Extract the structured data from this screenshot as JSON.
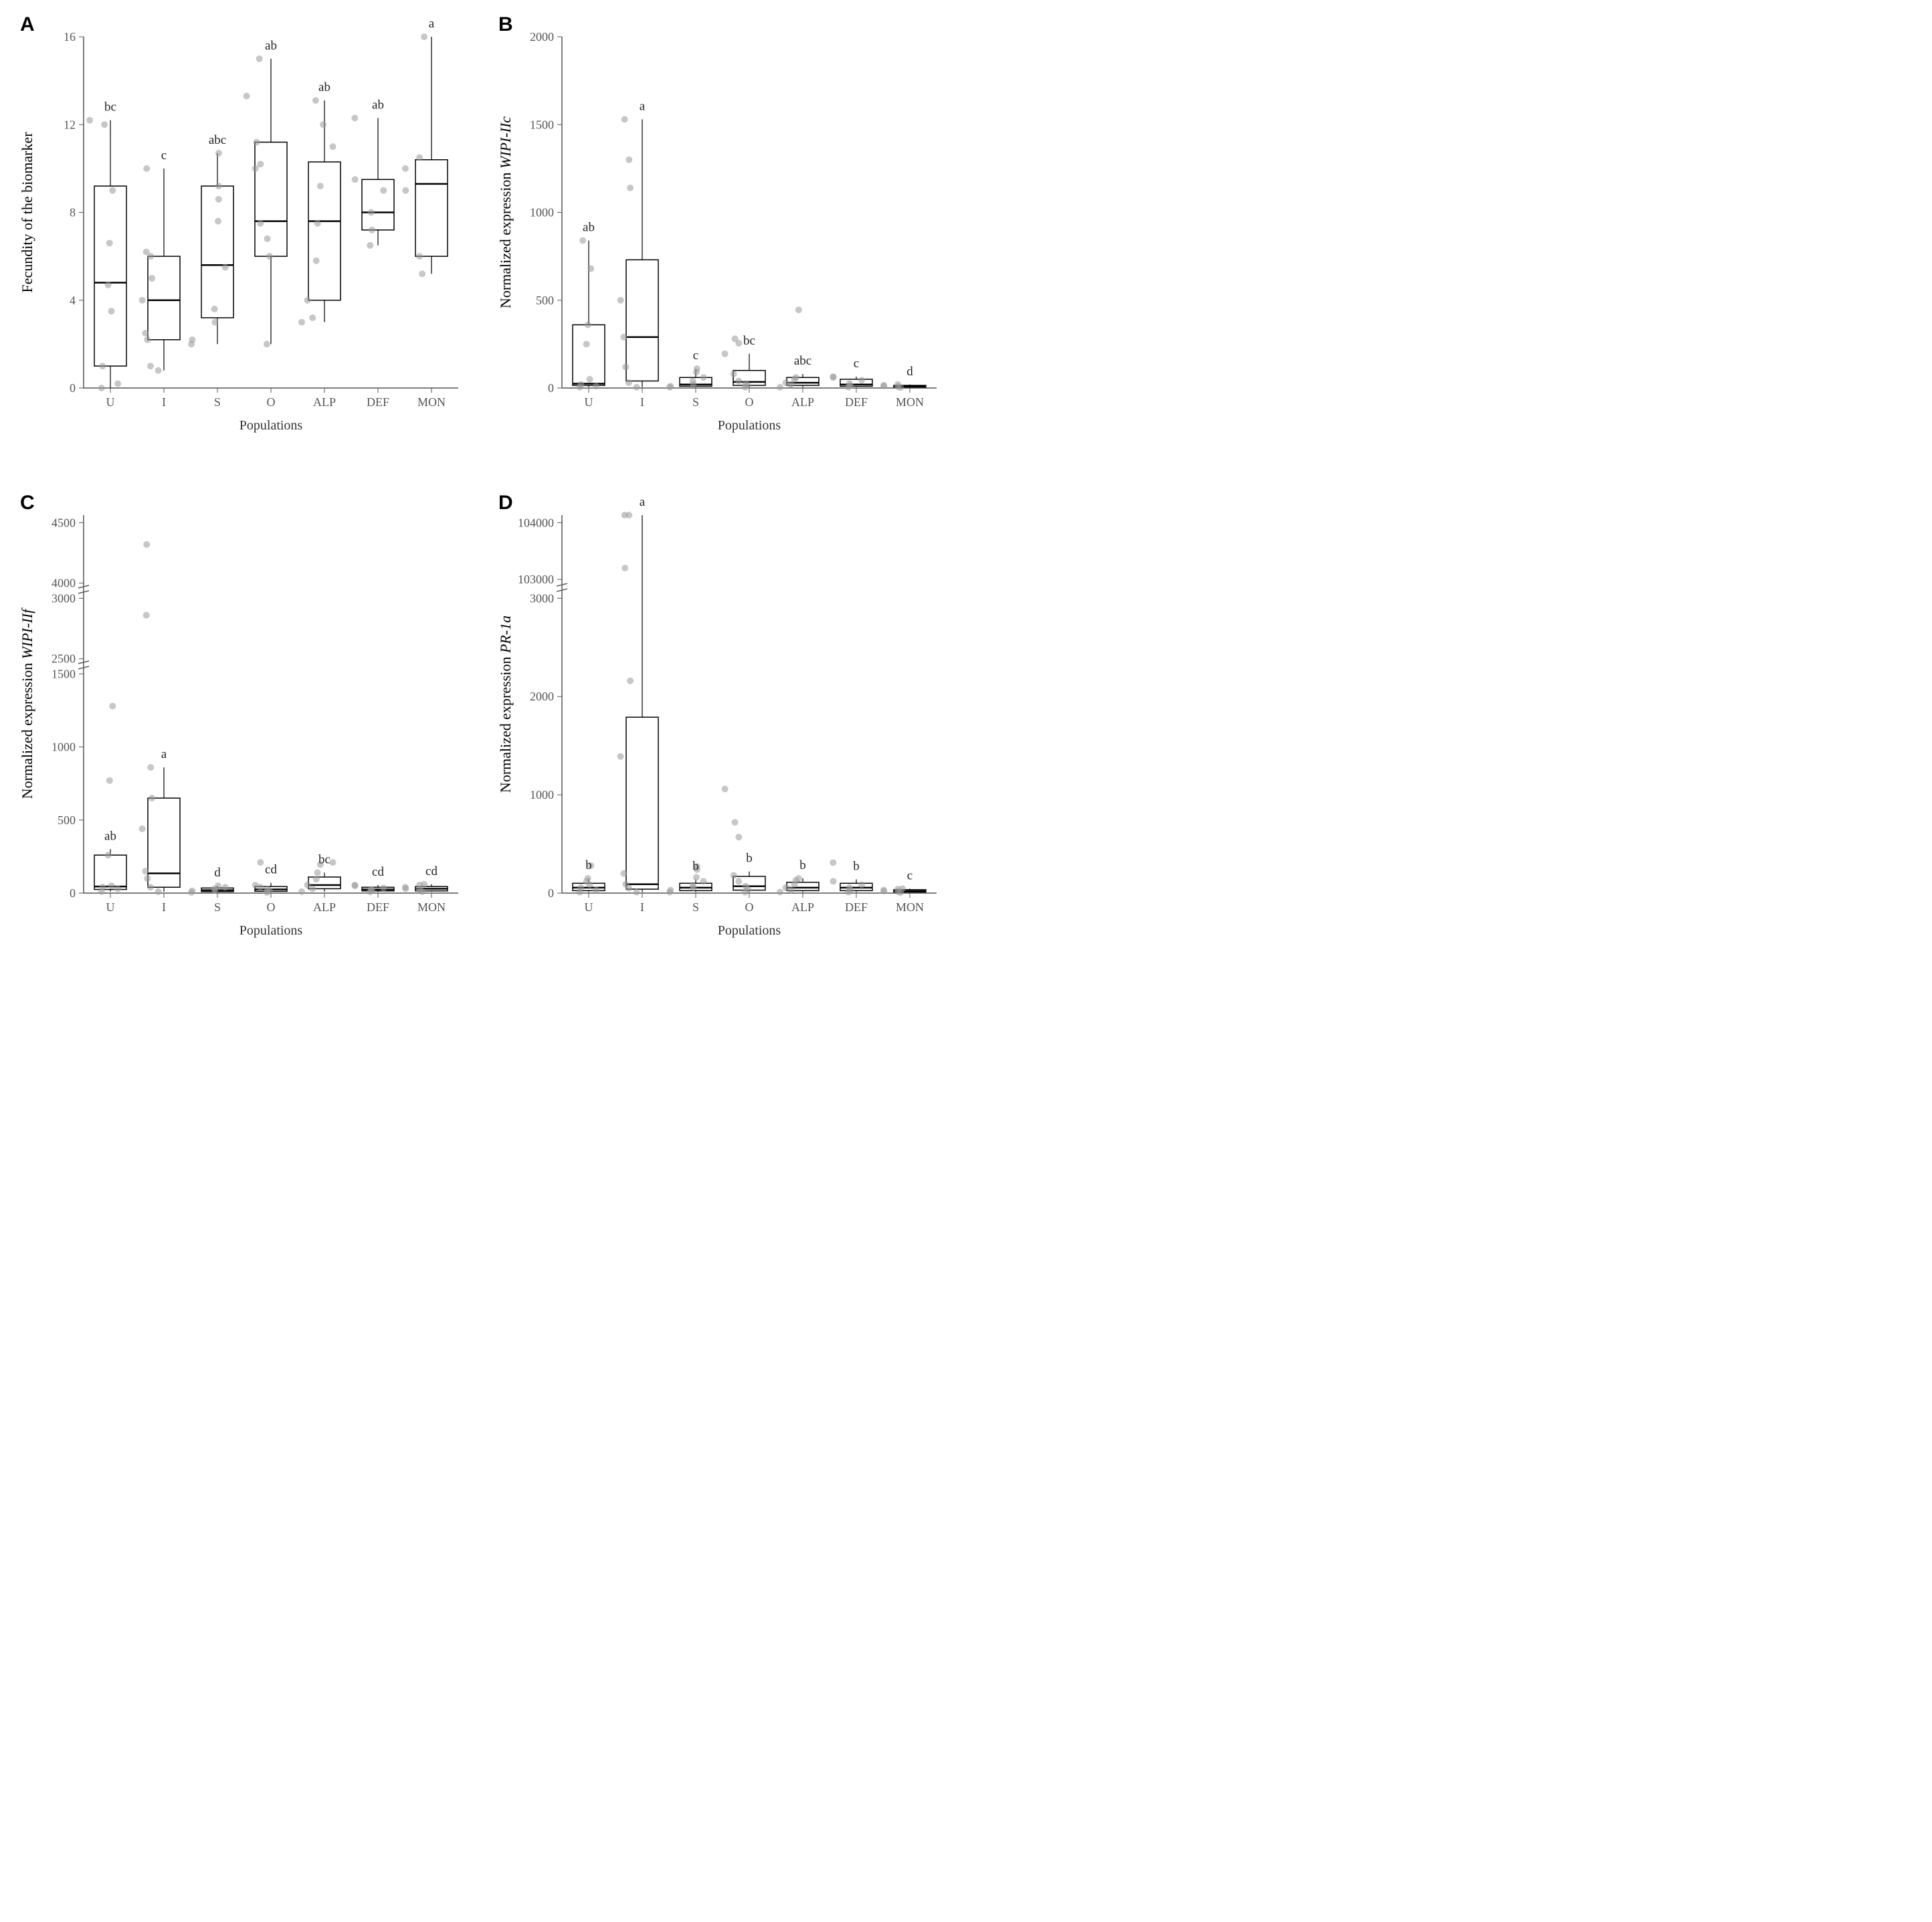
{
  "colors": {
    "background": "#ffffff",
    "axis": "#555555",
    "text": "#333333",
    "point": "#999999",
    "point_opacity": 0.55,
    "box_stroke": "#000000"
  },
  "fonts": {
    "panel_label_size": 30,
    "tick_label_size": 18,
    "axis_title_size": 22,
    "sig_label_size": 19
  },
  "x_categories": [
    "U",
    "I",
    "S",
    "O",
    "ALP",
    "DEF",
    "MON"
  ],
  "x_axis_label": "Populations",
  "panels": {
    "A": {
      "letter": "A",
      "ylabel": "Fecundity of the biomarker",
      "ylabel_italic": false,
      "yscale": {
        "min": 0,
        "max": 16,
        "ticks": [
          0,
          4,
          8,
          12,
          16
        ],
        "breaks": []
      },
      "sig_labels": [
        "bc",
        "c",
        "abc",
        "ab",
        "ab",
        "ab",
        "a"
      ],
      "boxes": [
        {
          "q1": 1.0,
          "med": 4.8,
          "q3": 9.2,
          "wl": 0,
          "wh": 12.2,
          "pts": [
            0,
            0.2,
            1.0,
            3.5,
            4.7,
            6.6,
            9.0,
            12.0,
            12.2
          ]
        },
        {
          "q1": 2.2,
          "med": 4.0,
          "q3": 6.0,
          "wl": 0.8,
          "wh": 10.0,
          "pts": [
            0.8,
            1.0,
            2.2,
            2.5,
            4.0,
            5.0,
            6.0,
            6.2,
            10.0
          ]
        },
        {
          "q1": 3.2,
          "med": 5.6,
          "q3": 9.2,
          "wl": 2.0,
          "wh": 10.7,
          "pts": [
            2.0,
            2.2,
            3.0,
            3.6,
            5.5,
            7.6,
            8.6,
            9.2,
            10.7
          ]
        },
        {
          "q1": 6.0,
          "med": 7.6,
          "q3": 11.2,
          "wl": 2.0,
          "wh": 15.0,
          "pts": [
            2.0,
            6.0,
            6.8,
            7.5,
            10.0,
            10.2,
            11.2,
            13.3,
            15.0
          ]
        },
        {
          "q1": 4.0,
          "med": 7.6,
          "q3": 10.3,
          "wl": 3.0,
          "wh": 13.1,
          "pts": [
            3.0,
            3.2,
            4.0,
            5.8,
            7.5,
            9.2,
            11.0,
            12.0,
            13.1
          ]
        },
        {
          "q1": 7.2,
          "med": 8.0,
          "q3": 9.5,
          "wl": 6.5,
          "wh": 12.3,
          "pts": [
            6.5,
            7.2,
            8.0,
            9.0,
            9.5,
            12.3
          ]
        },
        {
          "q1": 6.0,
          "med": 9.3,
          "q3": 10.4,
          "wl": 5.2,
          "wh": 16.0,
          "pts": [
            5.2,
            6.0,
            9.0,
            10.0,
            10.5,
            16.0
          ]
        }
      ]
    },
    "B": {
      "letter": "B",
      "ylabel_prefix": "Normalized expression  ",
      "ylabel_gene": "WIPI-IIc",
      "ylabel_italic": true,
      "yscale": {
        "min": 0,
        "max": 2000,
        "ticks": [
          0,
          500,
          1000,
          1500,
          2000
        ],
        "breaks": []
      },
      "sig_labels": [
        "ab",
        "a",
        "c",
        "bc",
        "abc",
        "c",
        "d"
      ],
      "boxes": [
        {
          "q1": 15,
          "med": 25,
          "q3": 360,
          "wl": 5,
          "wh": 840,
          "pts": [
            5,
            10,
            20,
            50,
            250,
            360,
            680,
            840
          ]
        },
        {
          "q1": 40,
          "med": 290,
          "q3": 730,
          "wl": 5,
          "wh": 1530,
          "pts": [
            5,
            30,
            120,
            290,
            500,
            1140,
            1300,
            1530
          ]
        },
        {
          "q1": 10,
          "med": 20,
          "q3": 60,
          "wl": 5,
          "wh": 110,
          "pts": [
            5,
            10,
            20,
            40,
            60,
            90,
            110
          ]
        },
        {
          "q1": 15,
          "med": 35,
          "q3": 100,
          "wl": 5,
          "wh": 195,
          "pts": [
            5,
            15,
            25,
            40,
            80,
            255,
            280,
            195
          ]
        },
        {
          "q1": 15,
          "med": 30,
          "q3": 60,
          "wl": 5,
          "wh": 80,
          "pts": [
            5,
            20,
            30,
            50,
            60,
            445
          ]
        },
        {
          "q1": 10,
          "med": 20,
          "q3": 50,
          "wl": 5,
          "wh": 65,
          "pts": [
            5,
            15,
            25,
            45,
            60,
            65
          ]
        },
        {
          "q1": 5,
          "med": 10,
          "q3": 15,
          "wl": 3,
          "wh": 20,
          "pts": [
            3,
            8,
            12,
            15,
            20
          ]
        }
      ]
    },
    "C": {
      "letter": "C",
      "ylabel_prefix": "Normalized expression  ",
      "ylabel_gene": "WIPI-IIf",
      "ylabel_italic": true,
      "yscale": {
        "min": 0,
        "max_low": 1500,
        "ticks_low": [
          0,
          500,
          1000,
          1500
        ],
        "min_high": 2500,
        "max_high": 4500,
        "ticks_high": [
          2500,
          3000,
          4000,
          4500
        ],
        "breaks": [
          [
            1500,
            2500
          ],
          [
            3000,
            4000
          ]
        ]
      },
      "sig_labels": [
        "ab",
        "a",
        "d",
        "cd",
        "bc",
        "cd",
        "cd"
      ],
      "boxes": [
        {
          "q1": 25,
          "med": 45,
          "q3": 260,
          "wl": 10,
          "wh": 300,
          "pts": [
            10,
            30,
            40,
            50,
            260,
            770,
            1280
          ]
        },
        {
          "q1": 40,
          "med": 135,
          "q3": 650,
          "wl": 10,
          "wh": 860,
          "pts": [
            10,
            40,
            100,
            150,
            440,
            650,
            860,
            2860,
            4320
          ]
        },
        {
          "q1": 10,
          "med": 20,
          "q3": 35,
          "wl": 5,
          "wh": 50,
          "pts": [
            5,
            15,
            20,
            30,
            40,
            50
          ]
        },
        {
          "q1": 12,
          "med": 25,
          "q3": 45,
          "wl": 5,
          "wh": 70,
          "pts": [
            5,
            15,
            25,
            40,
            55,
            210
          ]
        },
        {
          "q1": 30,
          "med": 55,
          "q3": 110,
          "wl": 10,
          "wh": 140,
          "pts": [
            10,
            30,
            55,
            95,
            140,
            195,
            210
          ]
        },
        {
          "q1": 15,
          "med": 25,
          "q3": 40,
          "wl": 8,
          "wh": 55,
          "pts": [
            8,
            20,
            25,
            35,
            50,
            55
          ]
        },
        {
          "q1": 15,
          "med": 30,
          "q3": 45,
          "wl": 10,
          "wh": 60,
          "pts": [
            10,
            25,
            30,
            40,
            55,
            60
          ]
        }
      ]
    },
    "D": {
      "letter": "D",
      "ylabel_prefix": "Normalized expression  ",
      "ylabel_gene": "PR-1a",
      "ylabel_italic": true,
      "yscale": {
        "min": 0,
        "max_low": 3000,
        "ticks_low": [
          0,
          1000,
          2000,
          3000
        ],
        "min_high": 103000,
        "max_high": 104000,
        "ticks_high": [
          103000,
          104000
        ],
        "breaks": [
          [
            3000,
            103000
          ]
        ]
      },
      "sig_labels": [
        "b",
        "a",
        "b",
        "b",
        "b",
        "b",
        "c"
      ],
      "boxes": [
        {
          "q1": 25,
          "med": 55,
          "q3": 100,
          "wl": 10,
          "wh": 150,
          "pts": [
            10,
            30,
            55,
            85,
            120,
            150,
            280
          ]
        },
        {
          "q1": 40,
          "med": 90,
          "q3": 1790,
          "wl": 10,
          "wh": 3100,
          "pts": [
            10,
            50,
            90,
            200,
            1390,
            2160,
            3080,
            3120,
            103200
          ]
        },
        {
          "q1": 25,
          "med": 55,
          "q3": 100,
          "wl": 10,
          "wh": 140,
          "pts": [
            10,
            30,
            55,
            80,
            120,
            160,
            240,
            270
          ]
        },
        {
          "q1": 30,
          "med": 70,
          "q3": 170,
          "wl": 10,
          "wh": 220,
          "pts": [
            10,
            40,
            70,
            120,
            180,
            570,
            720,
            1060
          ]
        },
        {
          "q1": 25,
          "med": 55,
          "q3": 110,
          "wl": 10,
          "wh": 150,
          "pts": [
            10,
            30,
            55,
            90,
            130,
            150
          ]
        },
        {
          "q1": 25,
          "med": 55,
          "q3": 100,
          "wl": 10,
          "wh": 140,
          "pts": [
            10,
            30,
            55,
            85,
            120,
            310
          ]
        },
        {
          "q1": 10,
          "med": 20,
          "q3": 35,
          "wl": 5,
          "wh": 45,
          "pts": [
            5,
            15,
            20,
            30,
            40,
            45
          ]
        }
      ]
    }
  }
}
